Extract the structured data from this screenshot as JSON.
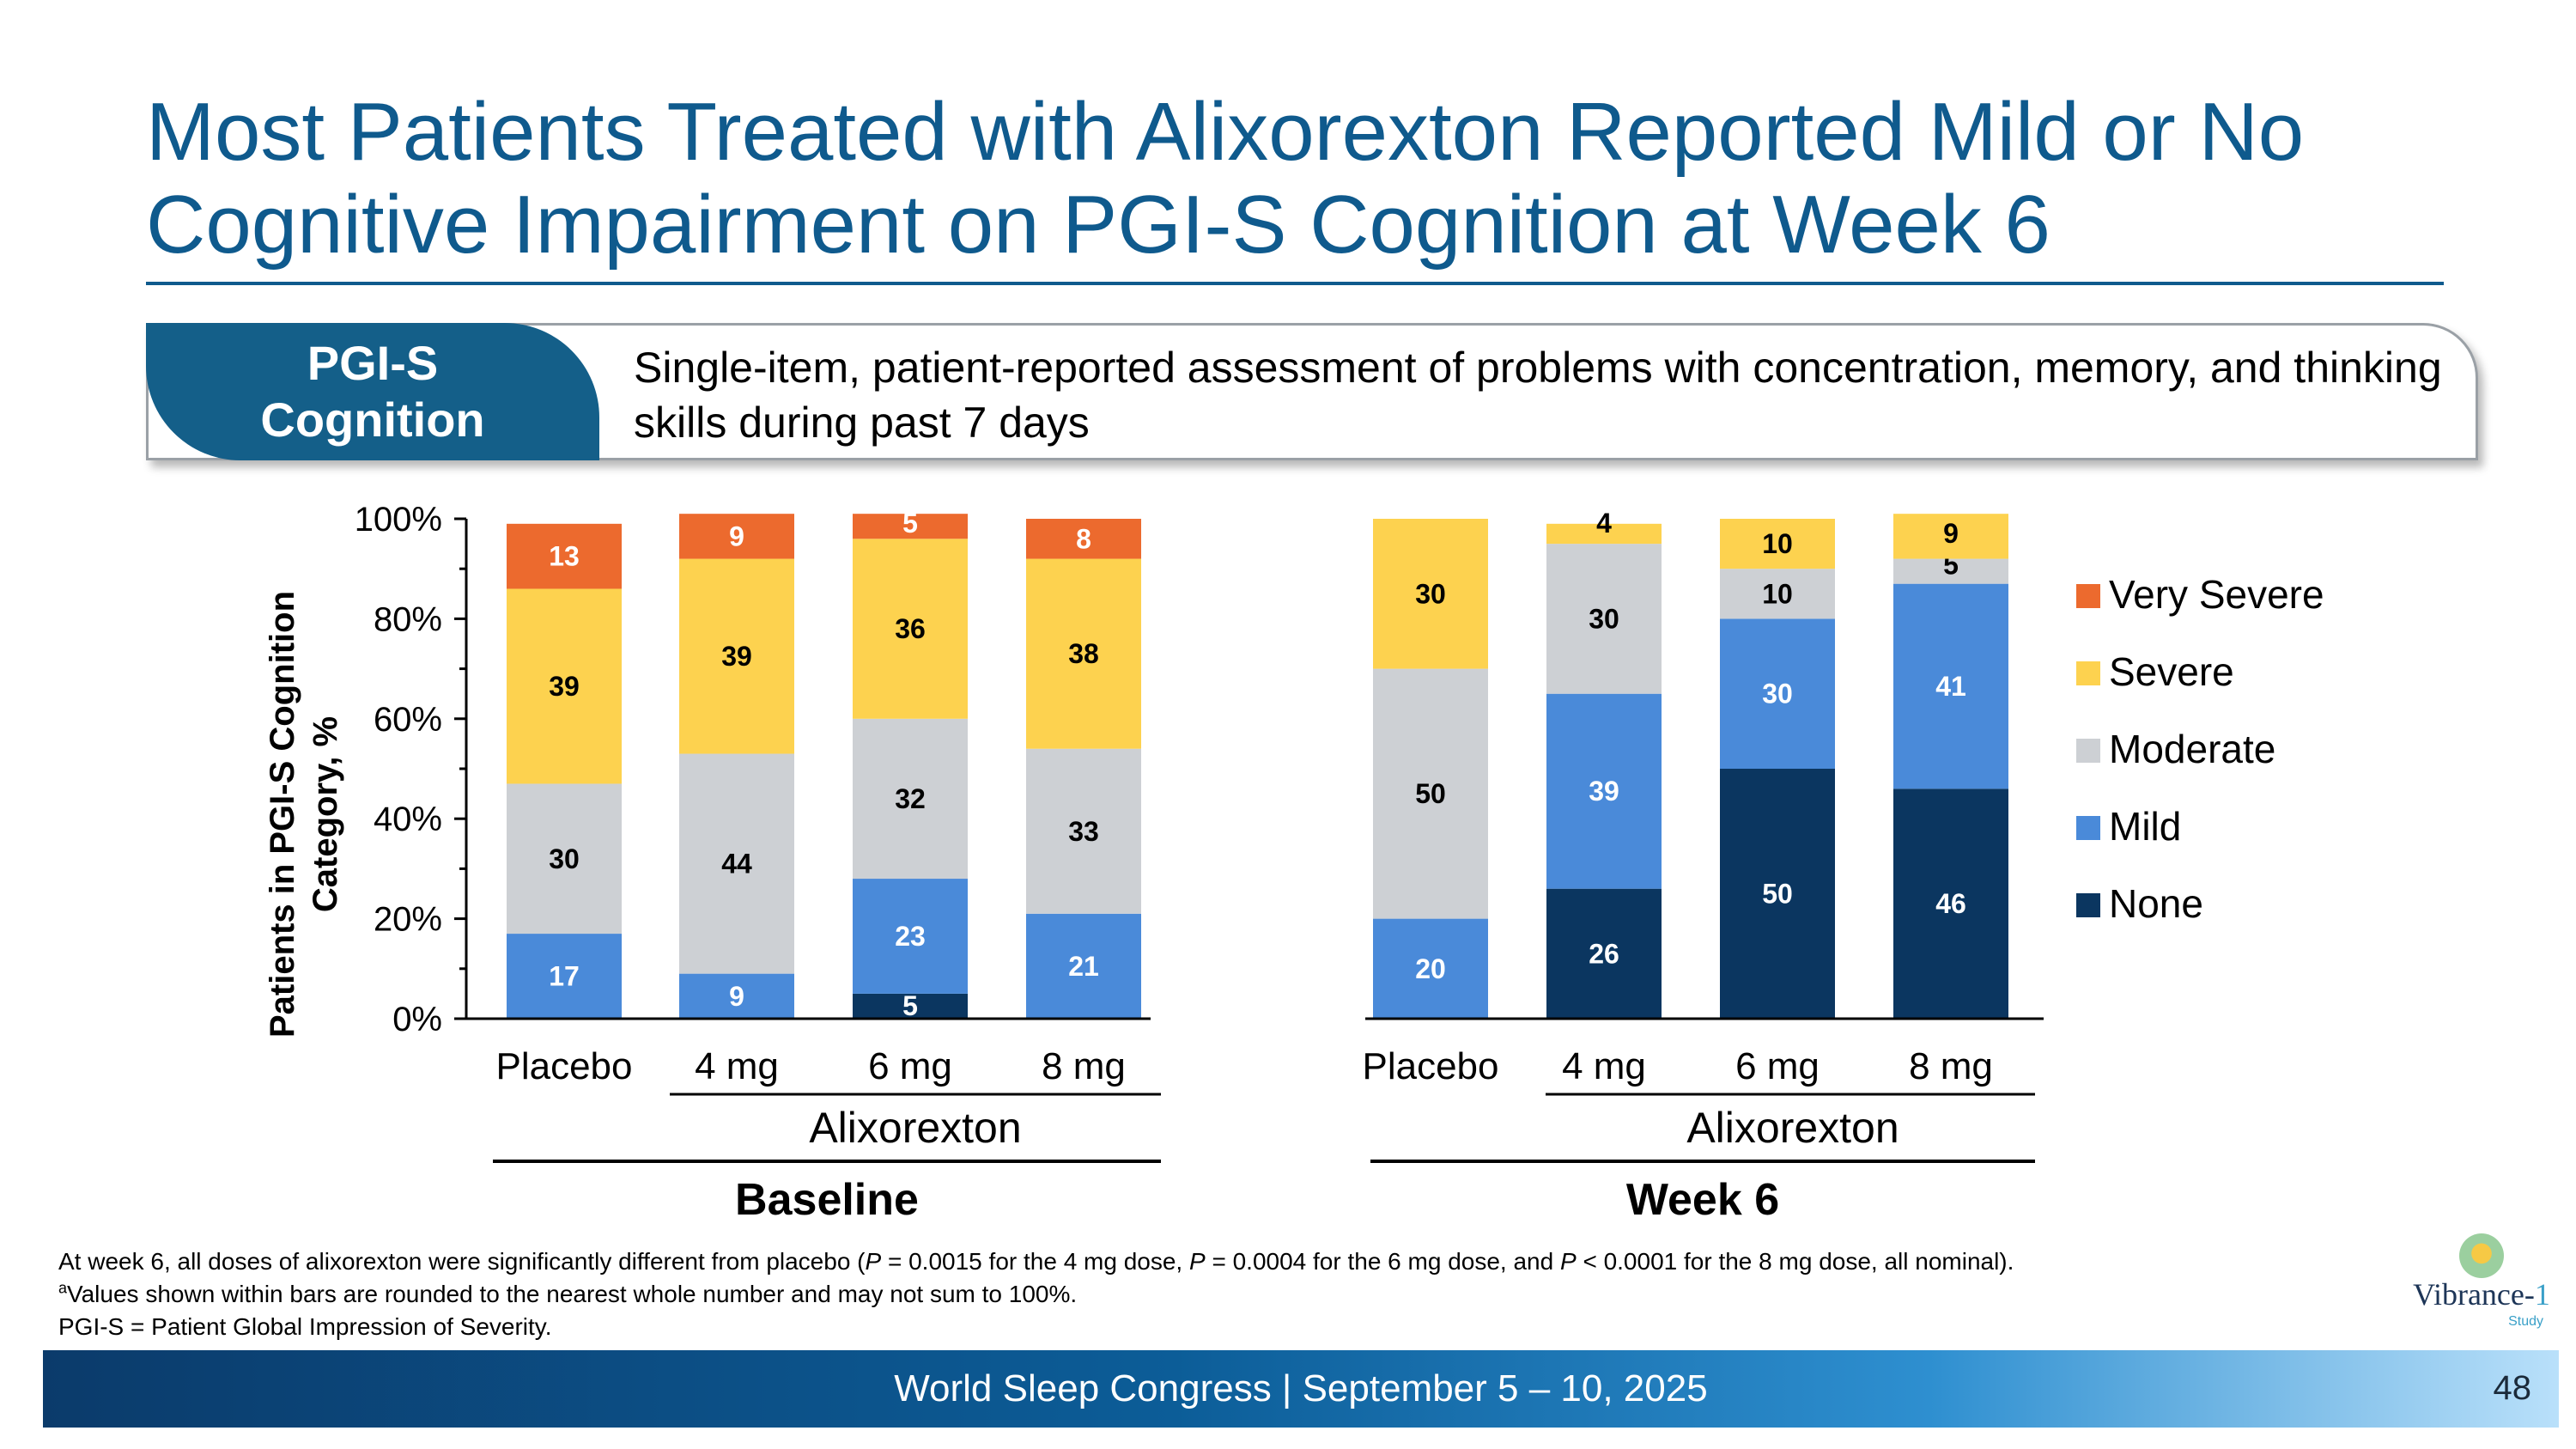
{
  "slide": {
    "title_line1": "Most Patients Treated with Alixorexton Reported Mild or No",
    "title_line2": "Cognitive Impairment on PGI-S Cognition at Week 6",
    "def_tab_line1": "PGI-S",
    "def_tab_line2": "Cognition",
    "def_text": "Single-item, patient-reported assessment of problems with concentration, memory, and thinking skills during past 7 days",
    "footnote1_a": "At week 6, all doses of alixorexton were significantly different from placebo (",
    "footnote1_p1": "P",
    "footnote1_b": " = 0.0015 for the 4 mg dose, ",
    "footnote1_p2": "P",
    "footnote1_c": " = 0.0004 for the 6 mg dose, and ",
    "footnote1_p3": "P",
    "footnote1_d": " < 0.0001 for the 8 mg dose, all nominal).",
    "footnote2_sup": "a",
    "footnote2": "Values shown within bars are rounded to the nearest whole number and may not sum to 100%.",
    "footnote3": "PGI-S = Patient Global Impression of Severity.",
    "footer": "World Sleep Congress | September 5 – 10, 2025",
    "page_number": "48",
    "logo_word": "Vibrance-",
    "logo_num": "1",
    "logo_sub": "Study"
  },
  "colors": {
    "none": "#0b3660",
    "mild": "#4a8ad9",
    "moderate": "#cdd0d4",
    "severe": "#fdd24f",
    "very_severe": "#ec6a2e"
  },
  "chart_data": {
    "type": "bar",
    "stacked": true,
    "ylabel_line1": "Patients in PGI-S Cognition",
    "ylabel_line2": "Category, %",
    "ylim": [
      0,
      100
    ],
    "yticks": [
      "0%",
      "20%",
      "40%",
      "60%",
      "80%",
      "100%"
    ],
    "categories": [
      "Placebo",
      "4 mg",
      "6 mg",
      "8 mg",
      "Placebo",
      "4 mg",
      "6 mg",
      "8 mg"
    ],
    "groups": [
      {
        "name": "Baseline",
        "subgroup": "Alixorexton"
      },
      {
        "name": "Week 6",
        "subgroup": "Alixorexton"
      }
    ],
    "series": [
      {
        "name": "None",
        "color_key": "none",
        "values": [
          0,
          0,
          5,
          0,
          0,
          26,
          50,
          46
        ]
      },
      {
        "name": "Mild",
        "color_key": "mild",
        "values": [
          17,
          9,
          23,
          21,
          20,
          39,
          30,
          41
        ]
      },
      {
        "name": "Moderate",
        "color_key": "moderate",
        "values": [
          30,
          44,
          32,
          33,
          50,
          30,
          10,
          5
        ]
      },
      {
        "name": "Severe",
        "color_key": "severe",
        "values": [
          39,
          39,
          36,
          38,
          30,
          4,
          10,
          9
        ]
      },
      {
        "name": "Very Severe",
        "color_key": "very_severe",
        "values": [
          13,
          9,
          5,
          8,
          0,
          0,
          0,
          0
        ]
      }
    ],
    "legend": [
      "Very Severe",
      "Severe",
      "Moderate",
      "Mild",
      "None"
    ],
    "legend_position": "right"
  }
}
